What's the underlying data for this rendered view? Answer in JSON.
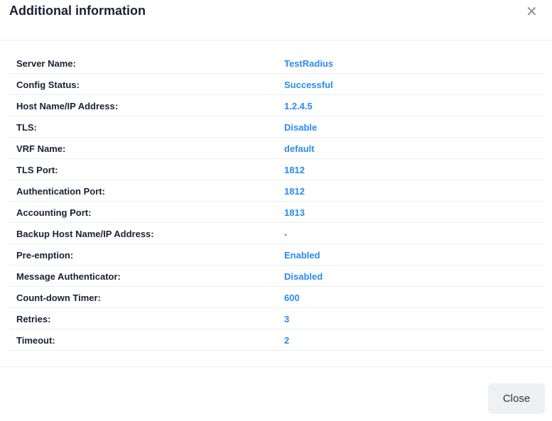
{
  "dialog": {
    "title": "Additional information",
    "close_icon": "close-icon",
    "close_button": "Close",
    "rows": [
      {
        "label": "Server Name:",
        "value": "TestRadius"
      },
      {
        "label": "Config Status:",
        "value": "Successful"
      },
      {
        "label": "Host Name/IP Address:",
        "value": "1.2.4.5"
      },
      {
        "label": "TLS:",
        "value": "Disable"
      },
      {
        "label": "VRF Name:",
        "value": "default"
      },
      {
        "label": "TLS Port:",
        "value": "1812"
      },
      {
        "label": "Authentication Port:",
        "value": "1812"
      },
      {
        "label": "Accounting Port:",
        "value": "1813"
      },
      {
        "label": "Backup Host Name/IP Address:",
        "value": "-"
      },
      {
        "label": "Pre-emption:",
        "value": "Enabled"
      },
      {
        "label": "Message Authenticator:",
        "value": "Disabled"
      },
      {
        "label": "Count-down Timer:",
        "value": "600"
      },
      {
        "label": "Retries:",
        "value": "3"
      },
      {
        "label": "Timeout:",
        "value": "2"
      }
    ]
  },
  "colors": {
    "label": "#1a2035",
    "value": "#2a8af0",
    "button_bg": "#eef0f3"
  }
}
